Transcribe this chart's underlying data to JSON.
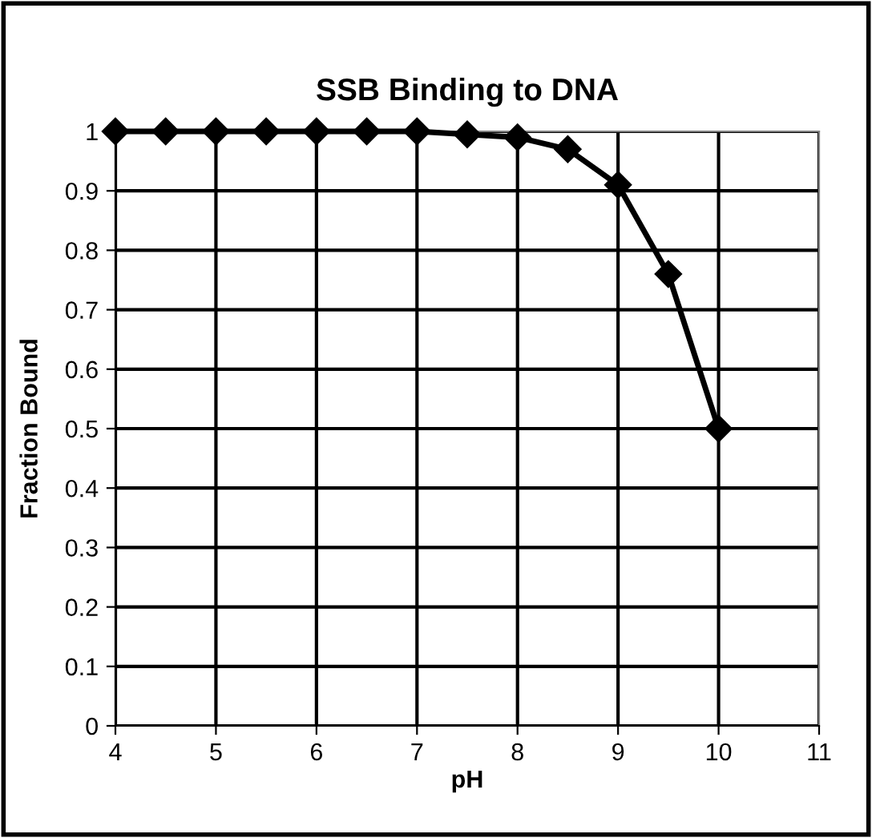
{
  "chart_data": {
    "type": "line",
    "title": "SSB Binding to DNA",
    "xlabel": "pH",
    "ylabel": "Fraction Bound",
    "x": [
      4,
      4.5,
      5,
      5.5,
      6,
      6.5,
      7,
      7.5,
      8,
      8.5,
      9,
      9.5,
      10
    ],
    "series": [
      {
        "color": "#000000",
        "values": [
          1,
          1,
          1,
          1,
          1,
          1,
          1,
          0.995,
          0.99,
          0.97,
          0.91,
          0.76,
          0.5
        ]
      }
    ],
    "xlim": [
      4,
      11
    ],
    "xticks": [
      4,
      5,
      6,
      7,
      8,
      9,
      10,
      11
    ],
    "ylim": [
      0,
      1
    ],
    "yticks": [
      0,
      0.1,
      0.2,
      0.3,
      0.4,
      0.5,
      0.6,
      0.7,
      0.8,
      0.9,
      1
    ],
    "grid": true,
    "legend": false,
    "marker": "diamond",
    "line_style": "solid"
  }
}
